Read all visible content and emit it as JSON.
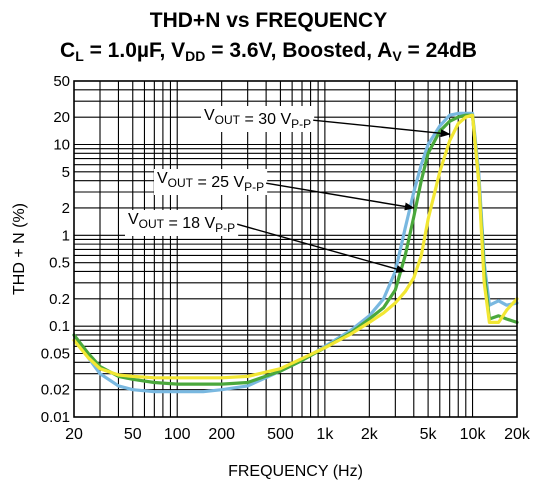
{
  "title": {
    "line1": "THD+N vs FREQUENCY",
    "line2": {
      "cl_base": "C",
      "cl_sub": "L",
      "cl_rest": " = 1.0µF, V",
      "vdd_sub": "DD",
      "vdd_rest": " = 3.6V, Boosted, A",
      "av_sub": "V",
      "av_rest": " = 24dB"
    }
  },
  "chart_data": {
    "type": "line",
    "xscale": "log",
    "yscale": "log",
    "xlim": [
      20,
      20000
    ],
    "ylim": [
      0.01,
      50
    ],
    "xlabel": "FREQUENCY (Hz)",
    "ylabel": "THD + N (%)",
    "grid": true,
    "x_ticks": [
      {
        "v": 20,
        "label": "20"
      },
      {
        "v": 50,
        "label": "50"
      },
      {
        "v": 100,
        "label": "100"
      },
      {
        "v": 200,
        "label": "200"
      },
      {
        "v": 500,
        "label": "500"
      },
      {
        "v": 1000,
        "label": "1k"
      },
      {
        "v": 2000,
        "label": "2k"
      },
      {
        "v": 5000,
        "label": "5k"
      },
      {
        "v": 10000,
        "label": "10k"
      },
      {
        "v": 20000,
        "label": "20k"
      }
    ],
    "y_ticks": [
      {
        "v": 0.01,
        "label": "0.01"
      },
      {
        "v": 0.02,
        "label": "0.02"
      },
      {
        "v": 0.05,
        "label": "0.05"
      },
      {
        "v": 0.1,
        "label": "0.1"
      },
      {
        "v": 0.2,
        "label": "0.2"
      },
      {
        "v": 0.5,
        "label": "0.5"
      },
      {
        "v": 1,
        "label": "1"
      },
      {
        "v": 2,
        "label": "2"
      },
      {
        "v": 5,
        "label": "5"
      },
      {
        "v": 10,
        "label": "10"
      },
      {
        "v": 20,
        "label": "20"
      },
      {
        "v": 50,
        "label": "50"
      }
    ],
    "series": [
      {
        "label_main": "V",
        "label_sub1": "OUT",
        "label_mid": " = 30 V",
        "label_sub2": "P-P",
        "color": "#79b8e0",
        "x": [
          20,
          25,
          30,
          40,
          50,
          70,
          100,
          150,
          200,
          300,
          500,
          700,
          1000,
          1500,
          2000,
          2500,
          3000,
          3500,
          4000,
          4500,
          5000,
          6000,
          7000,
          8000,
          9000,
          10000,
          11000,
          12000,
          13000,
          15000,
          17000,
          20000
        ],
        "y": [
          0.08,
          0.045,
          0.03,
          0.022,
          0.02,
          0.019,
          0.019,
          0.019,
          0.02,
          0.022,
          0.032,
          0.042,
          0.06,
          0.09,
          0.13,
          0.2,
          0.4,
          1.2,
          3.0,
          6.0,
          10,
          16,
          21,
          22,
          22,
          22,
          5.0,
          0.5,
          0.17,
          0.19,
          0.17,
          0.18
        ]
      },
      {
        "label_main": "V",
        "label_sub1": "OUT",
        "label_mid": " = 25 V",
        "label_sub2": "P-P",
        "color": "#4aa83c",
        "x": [
          20,
          25,
          30,
          40,
          50,
          70,
          100,
          150,
          200,
          300,
          500,
          700,
          1000,
          1500,
          2000,
          2500,
          3000,
          3500,
          4000,
          4500,
          5000,
          6000,
          7000,
          8000,
          9000,
          10000,
          11000,
          12000,
          13000,
          15000,
          17000,
          20000
        ],
        "y": [
          0.08,
          0.05,
          0.036,
          0.028,
          0.026,
          0.024,
          0.023,
          0.023,
          0.023,
          0.024,
          0.032,
          0.042,
          0.058,
          0.085,
          0.12,
          0.16,
          0.25,
          0.6,
          1.6,
          4.0,
          8.0,
          14,
          18,
          20,
          21,
          21,
          4.0,
          0.4,
          0.12,
          0.13,
          0.12,
          0.11
        ]
      },
      {
        "label_main": "V",
        "label_sub1": "OUT",
        "label_mid": " = 18 V",
        "label_sub2": "P-P",
        "color": "#f2e733",
        "x": [
          20,
          25,
          30,
          40,
          50,
          70,
          100,
          150,
          200,
          300,
          500,
          700,
          1000,
          1500,
          2000,
          2500,
          3000,
          3500,
          4000,
          4500,
          5000,
          6000,
          7000,
          8000,
          9000,
          10000,
          11000,
          12000,
          13000,
          15000,
          17000,
          20000
        ],
        "y": [
          0.07,
          0.045,
          0.034,
          0.029,
          0.028,
          0.027,
          0.027,
          0.027,
          0.027,
          0.028,
          0.034,
          0.044,
          0.058,
          0.082,
          0.11,
          0.14,
          0.18,
          0.24,
          0.34,
          0.6,
          1.5,
          5.0,
          11,
          17,
          20,
          21,
          4.0,
          0.3,
          0.11,
          0.11,
          0.15,
          0.2
        ]
      }
    ],
    "annotation_arrow_targets": [
      {
        "x": 7000,
        "y": 13
      },
      {
        "x": 4000,
        "y": 2.0
      },
      {
        "x": 3500,
        "y": 0.4
      }
    ]
  }
}
